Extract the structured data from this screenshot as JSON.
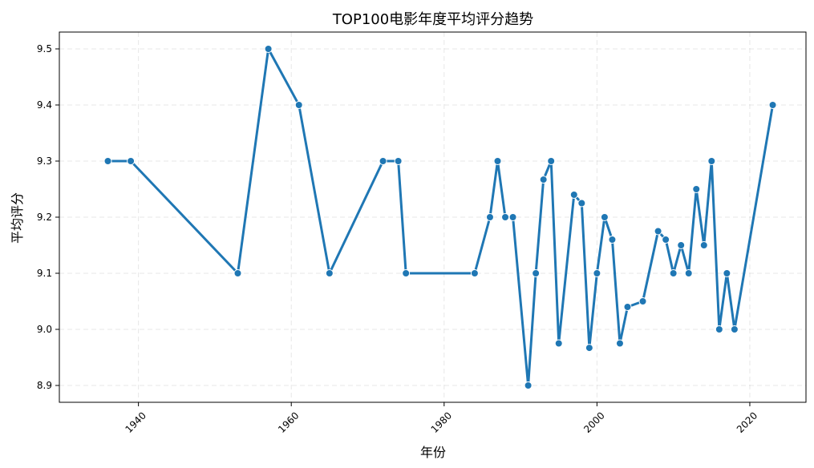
{
  "chart_data": {
    "type": "line",
    "title": "TOP100电影年度平均评分趋势",
    "xlabel": "年份",
    "ylabel": "平均评分",
    "xlim": [
      1929.65,
      2027.35
    ],
    "ylim": [
      8.87,
      9.53
    ],
    "x_ticks": [
      1940,
      1960,
      1980,
      2000,
      2020
    ],
    "y_ticks": [
      8.9,
      9.0,
      9.1,
      9.2,
      9.3,
      9.4,
      9.5
    ],
    "y_tick_labels": [
      "8.9",
      "9.0",
      "9.1",
      "9.2",
      "9.3",
      "9.4",
      "9.5"
    ],
    "x_tick_rotation": -45,
    "grid": true,
    "color": "#1f77b4",
    "series": [
      {
        "x": [
          1936,
          1939,
          1953,
          1957,
          1961,
          1965,
          1972,
          1974,
          1975,
          1984,
          1986,
          1987,
          1988,
          1989,
          1991,
          1992,
          1993,
          1994,
          1995,
          1997,
          1998,
          1999,
          2000,
          2001,
          2002,
          2003,
          2004,
          2006,
          2008,
          2009,
          2010,
          2011,
          2012,
          2013,
          2014,
          2015,
          2016,
          2017,
          2018,
          2023
        ],
        "y": [
          9.3,
          9.3,
          9.1,
          9.5,
          9.4,
          9.1,
          9.3,
          9.3,
          9.1,
          9.1,
          9.2,
          9.3,
          9.2,
          9.2,
          8.9,
          9.1,
          9.267,
          9.3,
          8.975,
          9.24,
          9.225,
          8.967,
          9.1,
          9.2,
          9.16,
          8.975,
          9.04,
          9.05,
          9.175,
          9.16,
          9.1,
          9.15,
          9.1,
          9.25,
          9.15,
          9.3,
          9.0,
          9.1,
          9.0,
          9.4
        ]
      }
    ]
  }
}
